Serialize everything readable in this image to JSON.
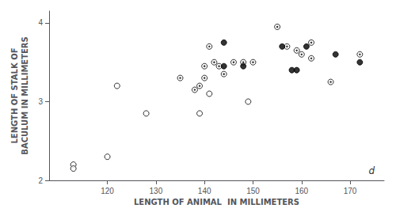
{
  "chart_data": {
    "type": "scatter",
    "xlabel": "LENGTH OF ANIMAL  IN MILLIMETERS",
    "ylabel": "LENGTH OF STALK OF\nBACULUM IN MILLIMETERS",
    "annotation": "d",
    "xlim": [
      108,
      177
    ],
    "ylim": [
      2.0,
      4.15
    ],
    "xticks": [
      120,
      130,
      140,
      150,
      160,
      170
    ],
    "yticks": [
      2,
      3,
      4
    ],
    "grid": false,
    "series": [
      {
        "marker": "open circle",
        "color": "#000000",
        "x": [
          113,
          113,
          120,
          122,
          128,
          139,
          141,
          149
        ],
        "values": [
          2.2,
          2.15,
          2.3,
          3.2,
          2.85,
          2.85,
          3.1,
          3.0
        ]
      },
      {
        "marker": "dotted circle",
        "color": "#000000",
        "x": [
          135,
          138,
          139,
          140,
          140,
          141,
          142,
          143,
          144,
          146,
          148,
          150,
          155,
          157,
          159,
          160,
          162,
          162,
          166,
          172
        ],
        "values": [
          3.3,
          3.15,
          3.2,
          3.3,
          3.45,
          3.7,
          3.5,
          3.45,
          3.35,
          3.5,
          3.5,
          3.5,
          3.95,
          3.7,
          3.65,
          3.6,
          3.55,
          3.75,
          3.25,
          3.6
        ]
      },
      {
        "marker": "filled circle",
        "color": "#000000",
        "x": [
          144,
          144,
          148,
          156,
          158,
          159,
          161,
          167,
          172
        ],
        "values": [
          3.75,
          3.45,
          3.45,
          3.7,
          3.4,
          3.4,
          3.7,
          3.6,
          3.5
        ]
      }
    ]
  }
}
